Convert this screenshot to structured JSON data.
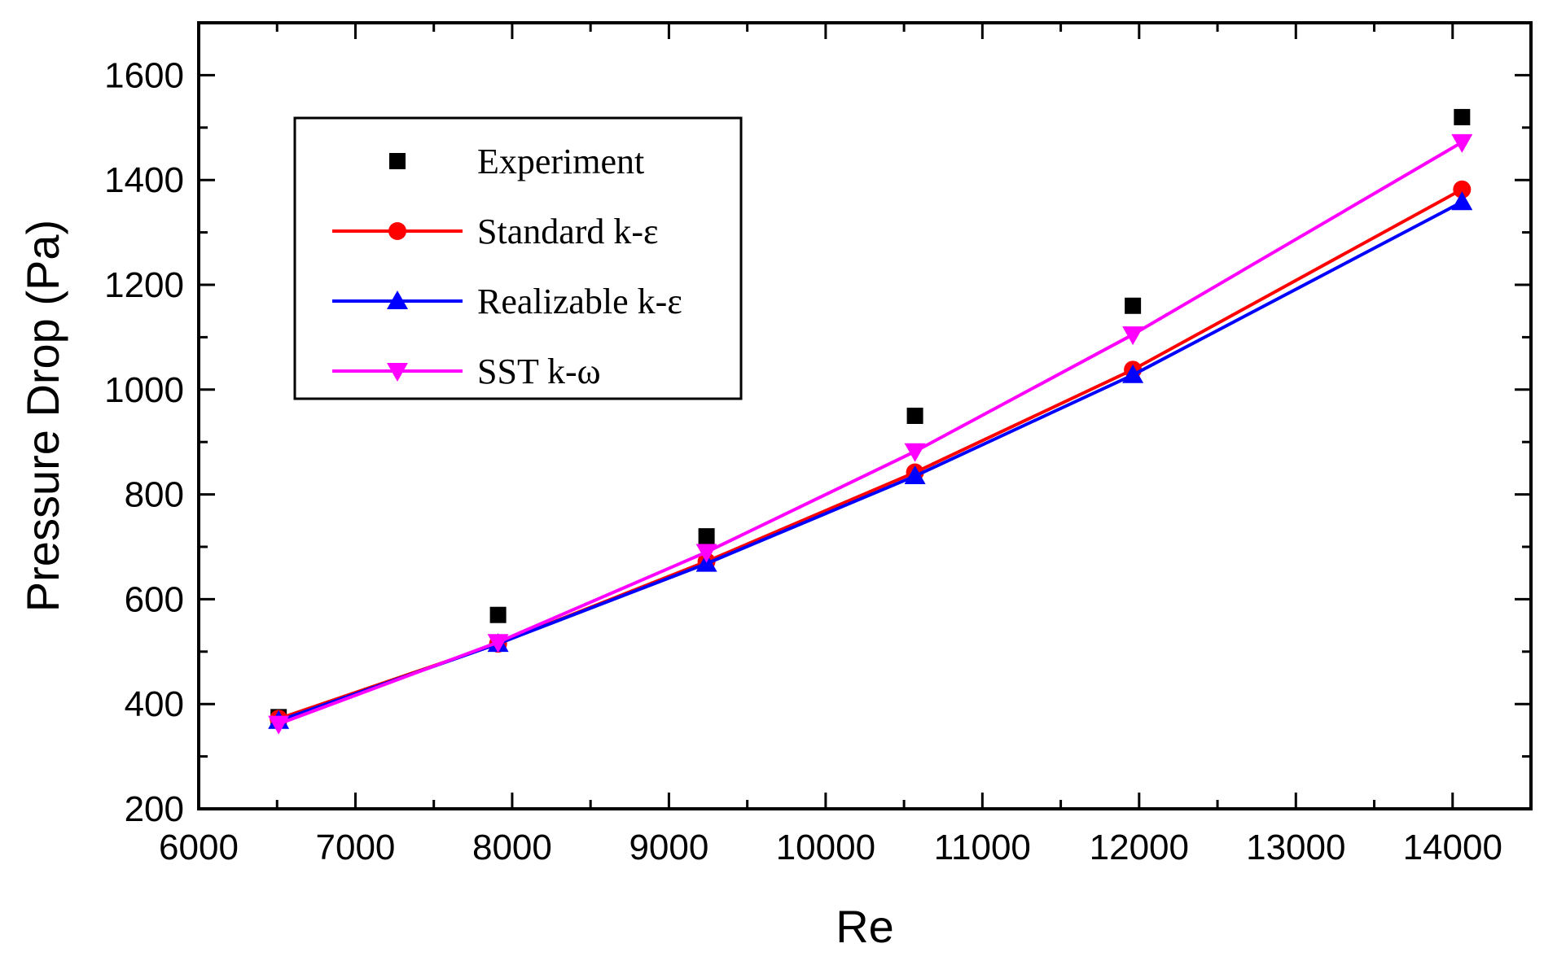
{
  "chart_data": {
    "type": "line",
    "title": "",
    "xlabel": "Re",
    "ylabel": "Pressure Drop (Pa)",
    "xlim": [
      6000,
      14500
    ],
    "ylim": [
      200,
      1700
    ],
    "xticks": [
      6000,
      7000,
      8000,
      9000,
      10000,
      11000,
      12000,
      13000,
      14000
    ],
    "xtick_labels": [
      "6000",
      "7000",
      "8000",
      "9000",
      "10000",
      "11000",
      "12000",
      "13000",
      "14000"
    ],
    "yticks": [
      200,
      400,
      600,
      800,
      1000,
      1200,
      1400,
      1600
    ],
    "ytick_labels": [
      "200",
      "400",
      "600",
      "800",
      "1000",
      "1200",
      "1400",
      "1600"
    ],
    "x": [
      6510,
      7910,
      9240,
      10570,
      11960,
      14060
    ],
    "legend_position": "upper-left",
    "series": [
      {
        "name": "Experiment",
        "color": "#000000",
        "marker": "square",
        "line": false,
        "values": [
          375,
          570,
          720,
          950,
          1160,
          1520
        ]
      },
      {
        "name": "Standard k-ε",
        "color": "#ff0000",
        "marker": "circle",
        "line": true,
        "values": [
          372,
          515,
          672,
          842,
          1038,
          1382
        ]
      },
      {
        "name": "Realizable k-ε",
        "color": "#0000ff",
        "marker": "triangle-up",
        "line": true,
        "values": [
          368,
          515,
          668,
          835,
          1028,
          1358
        ]
      },
      {
        "name": "SST k-ω",
        "color": "#ff00ff",
        "marker": "triangle-down",
        "line": true,
        "values": [
          362,
          518,
          690,
          882,
          1105,
          1472
        ]
      }
    ]
  }
}
